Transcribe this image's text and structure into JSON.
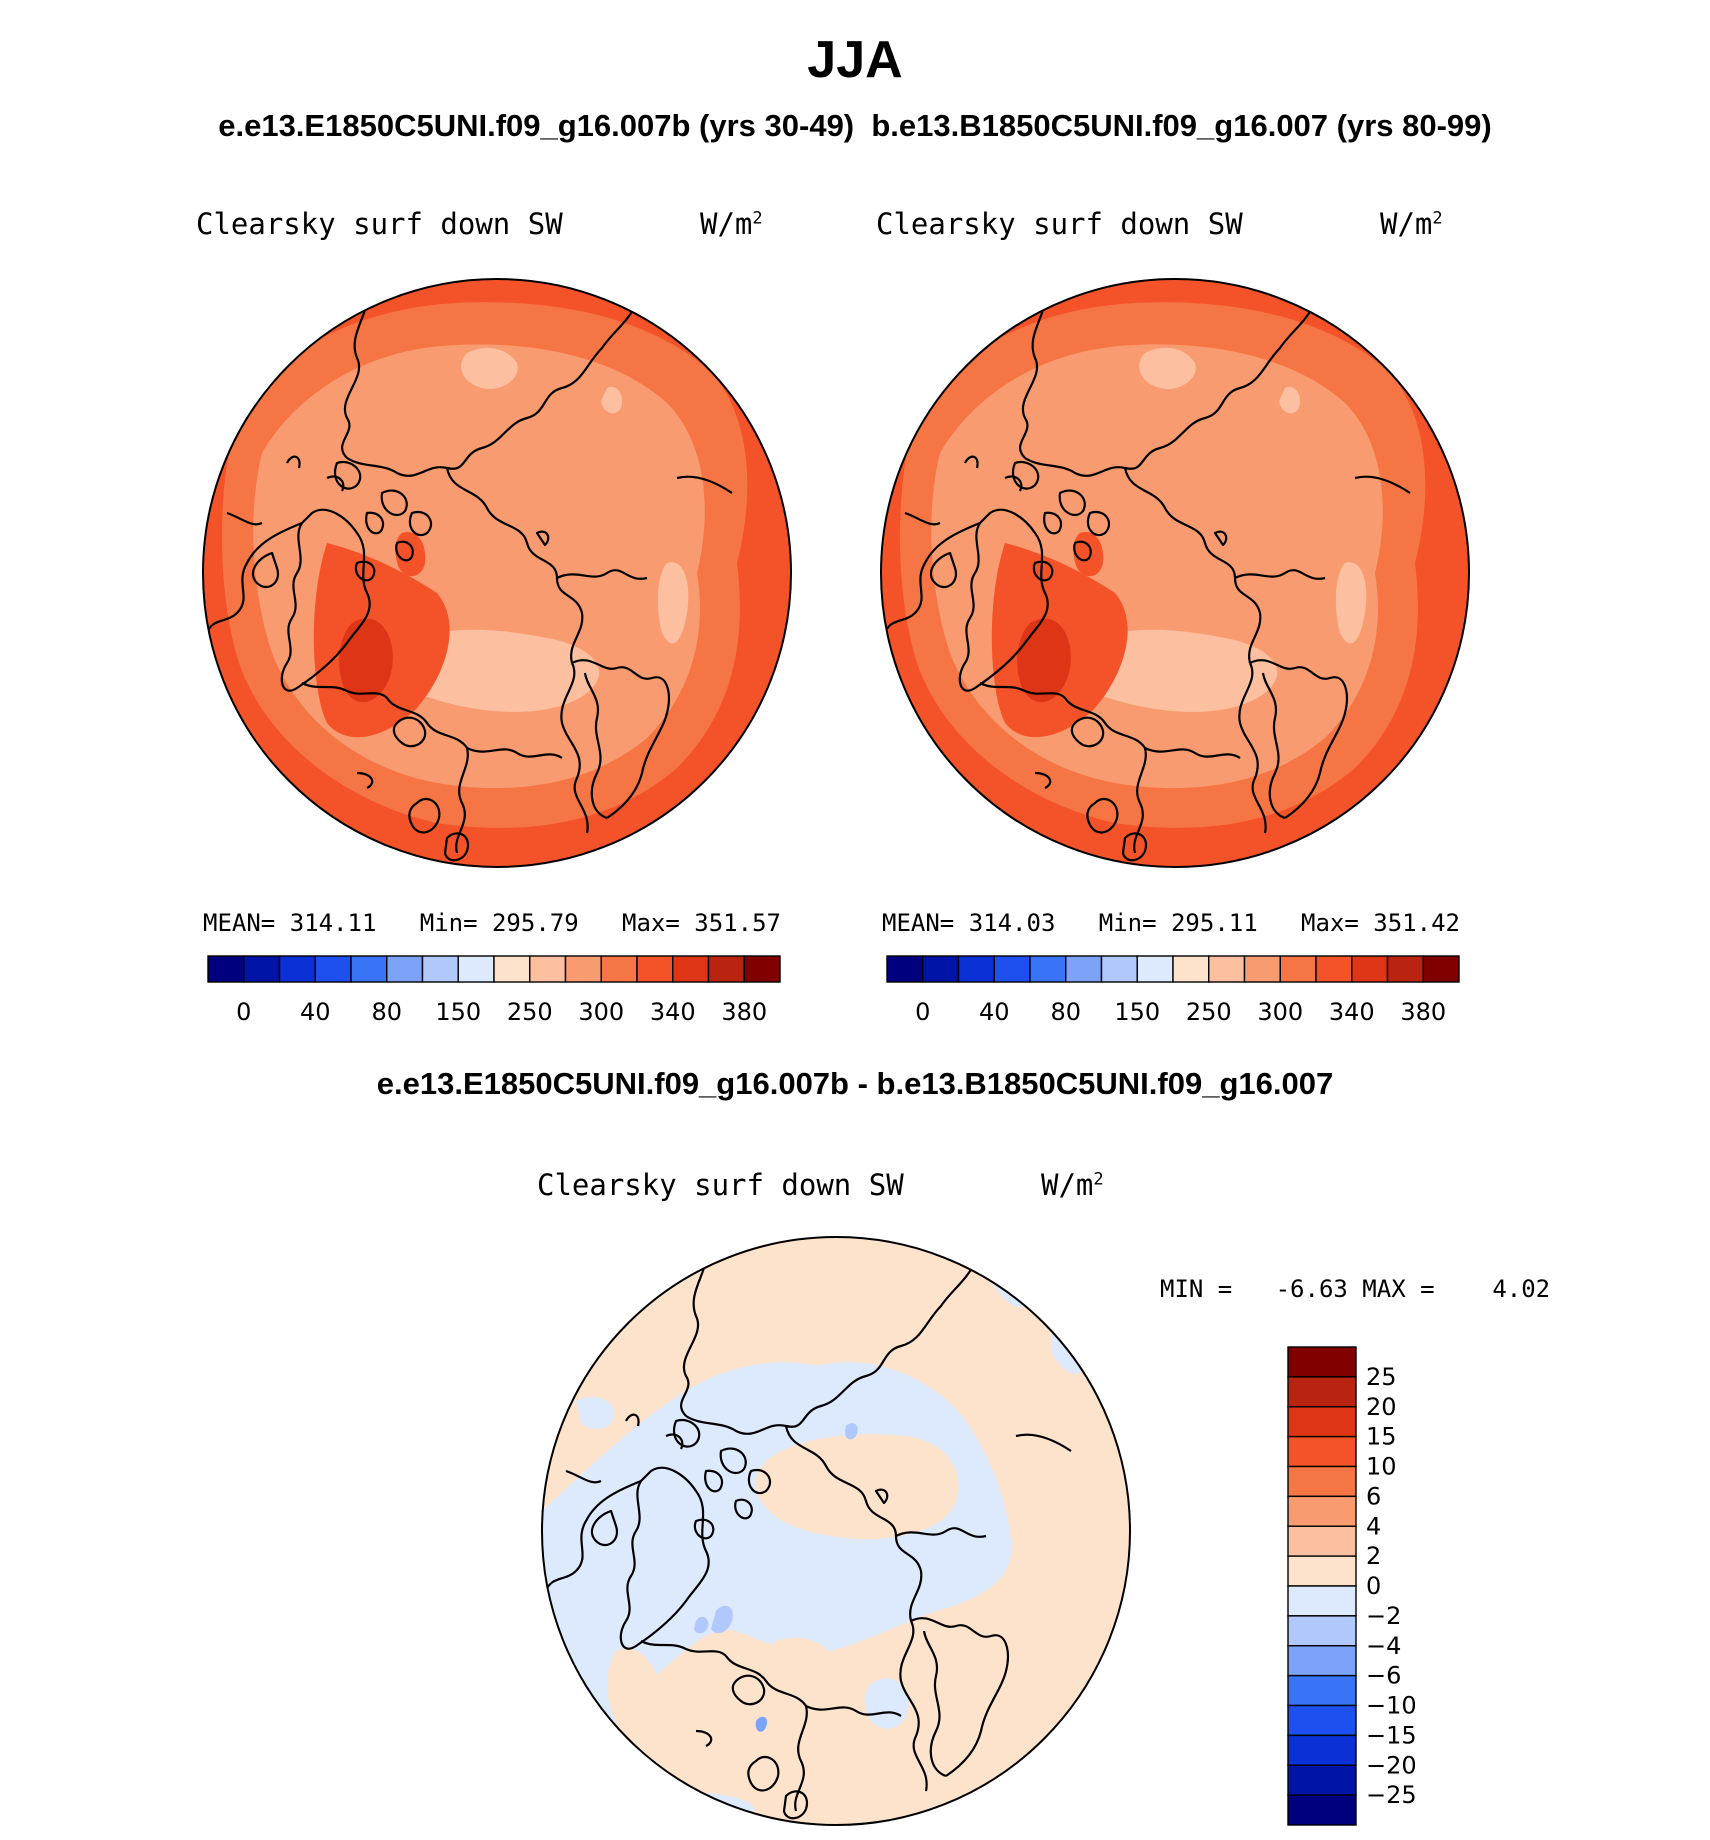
{
  "figure": {
    "season": "JJA",
    "subtitle_left": "e.e13.E1850C5UNI.f09_g16.007b (yrs 30-49)",
    "subtitle_right": "b.e13.B1850C5UNI.f09_g16.007 (yrs 80-99)",
    "diff_title": "e.e13.E1850C5UNI.f09_g16.007b - b.e13.B1850C5UNI.f09_g16.007"
  },
  "panels": [
    {
      "variable": "Clearsky surf down SW",
      "units": "W/m",
      "units_exp": "2",
      "stats": "MEAN= 314.11   Min= 295.79   Max= 351.57"
    },
    {
      "variable": "Clearsky surf down SW",
      "units": "W/m",
      "units_exp": "2",
      "stats": "MEAN= 314.03   Min= 295.11   Max= 351.42"
    }
  ],
  "diff_panel": {
    "variable": "Clearsky surf down SW",
    "units": "W/m",
    "units_exp": "2",
    "minmax": "MIN =   -6.63 MAX =    4.02"
  },
  "colorbar_top": {
    "colors": [
      "#00007f",
      "#0015a8",
      "#0a30d6",
      "#1e50f0",
      "#3a74f6",
      "#7da3f8",
      "#b0c8fb",
      "#dde9fd",
      "#fde3cc",
      "#fcc0a0",
      "#f99b70",
      "#f67545",
      "#f4532a",
      "#de3516",
      "#b82410",
      "#800000"
    ],
    "labels": [
      "0",
      "40",
      "80",
      "150",
      "250",
      "300",
      "340",
      "380"
    ]
  },
  "colorbar_diff": {
    "colors": [
      "#00007f",
      "#0015a8",
      "#0a30d6",
      "#1e50f0",
      "#3a74f6",
      "#7da3f8",
      "#b0c8fb",
      "#dde9fd",
      "#fde3cc",
      "#fcc0a0",
      "#f99b70",
      "#f67545",
      "#f4532a",
      "#de3516",
      "#b82410",
      "#800000"
    ],
    "labels": [
      "−25",
      "−20",
      "−15",
      "−10",
      "−6",
      "−4",
      "−2",
      "0",
      "2",
      "4",
      "6",
      "10",
      "15",
      "20",
      "25"
    ]
  },
  "map_colors": {
    "outer_band": "#f4532a",
    "mid_band": "#f67545",
    "inner": "#f99b70",
    "light": "#fcc0a0",
    "dark": "#de3516",
    "diff_pos": "#fde3cc",
    "diff_neg": "#dde9fd",
    "diff_neg2": "#b0c8fb",
    "diff_neg3": "#7da3f8"
  }
}
